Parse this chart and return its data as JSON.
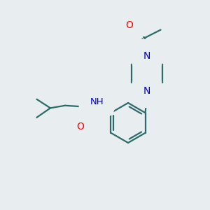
{
  "background_color": "#e8edf0",
  "bond_color": "#2d6b6b",
  "atom_colors": {
    "O": "#ff0000",
    "N": "#0000cc",
    "H": "#444444",
    "C": "#000000"
  },
  "bond_width": 1.6,
  "figsize": [
    3.0,
    3.0
  ],
  "dpi": 100
}
